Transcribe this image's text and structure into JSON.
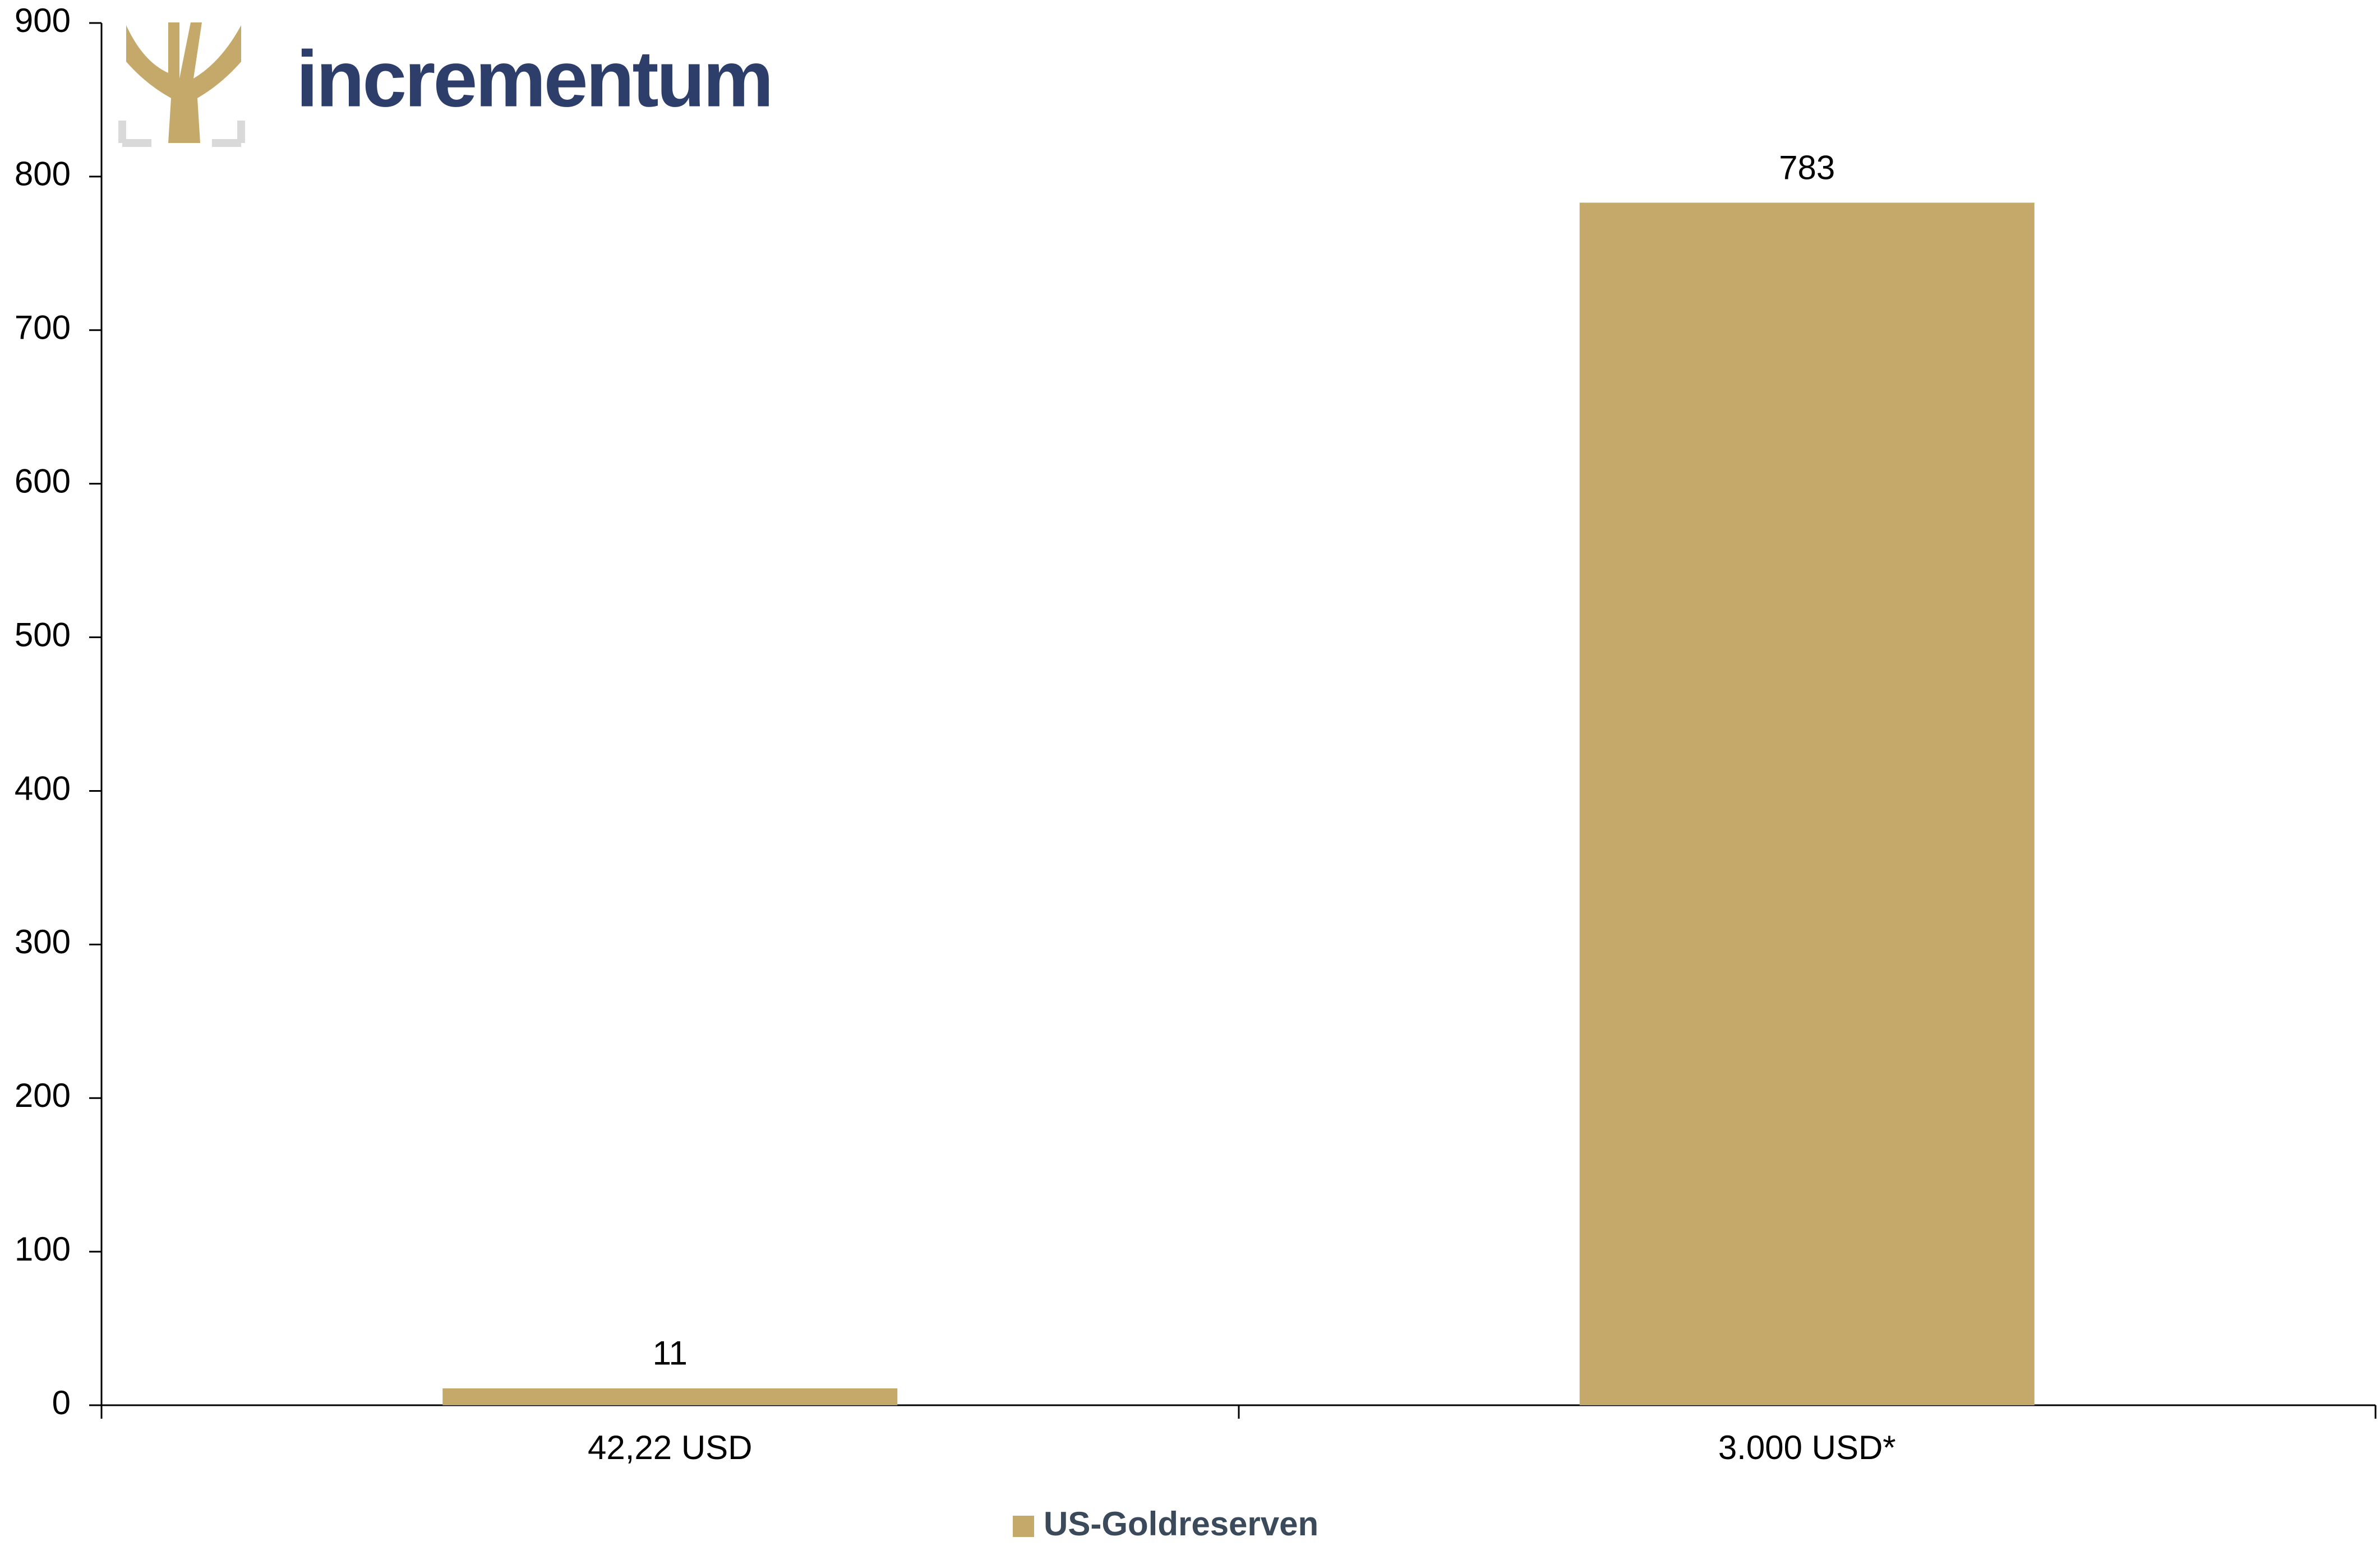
{
  "brand": {
    "name": "incrementum"
  },
  "chart_data": {
    "type": "bar",
    "categories": [
      "42,22 USD",
      "3.000 USD*"
    ],
    "series": [
      {
        "name": "US-Goldreserven",
        "color": "#c4a96b",
        "values": [
          11,
          783
        ]
      }
    ],
    "ylim": [
      0,
      900
    ],
    "yticks": [
      0,
      100,
      200,
      300,
      400,
      500,
      600,
      700,
      800,
      900
    ],
    "grid": false,
    "legend": "bottom"
  }
}
